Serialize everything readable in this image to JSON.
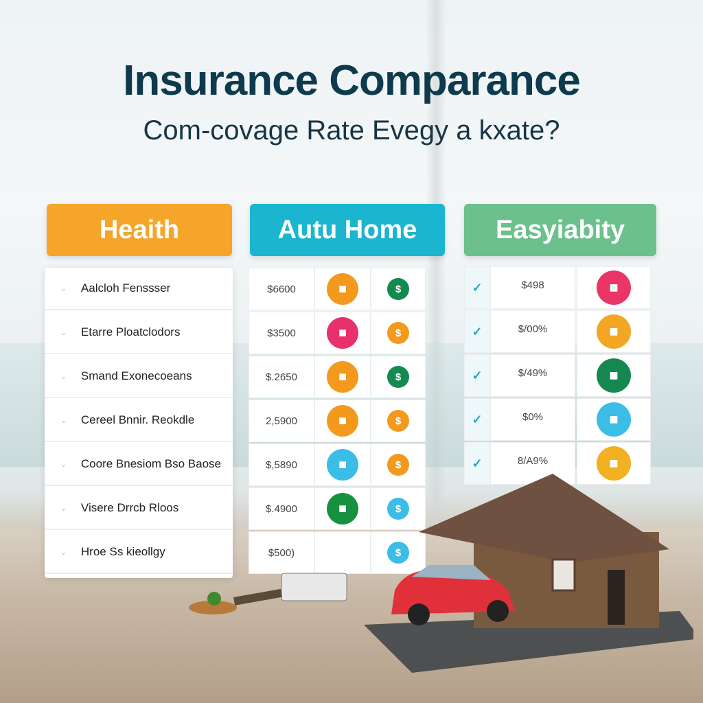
{
  "title": "Insurance Comparance",
  "subtitle": "Com-covage Rate Evegy a kxate?",
  "headers": [
    {
      "label": "Heaith",
      "color": "#f5a52a"
    },
    {
      "label": "Autu Home",
      "color": "#1bb5cf"
    },
    {
      "label": "Easyiabity",
      "color": "#6cc08c"
    }
  ],
  "health_rows": [
    "Aalcloh Fenssser",
    "Etarre Ploatclodors",
    "Smand Exonecoeans",
    "Cereel Bnnir. Reokdle",
    "Coore Bnesiom Bso Baose",
    "Visere Drrcb Rloos",
    "Hroe Ss kieollgy"
  ],
  "auto_rows": [
    {
      "price": "$6600",
      "icon1": {
        "name": "building-icon",
        "color": "#f39a1e"
      },
      "icon2": {
        "name": "dollar-icon",
        "color": "#138a4e"
      }
    },
    {
      "price": "$3500",
      "icon1": {
        "name": "car-icon",
        "color": "#e8306a"
      },
      "icon2": {
        "name": "dollar-icon",
        "color": "#f39a1e"
      }
    },
    {
      "price": "$.2650",
      "icon1": {
        "name": "home-icon",
        "color": "#f39a1e"
      },
      "icon2": {
        "name": "dollar-icon",
        "color": "#138a4e"
      }
    },
    {
      "price": "2,5900",
      "icon1": {
        "name": "document-icon",
        "color": "#f39a1e"
      },
      "icon2": {
        "name": "dollar-icon",
        "color": "#f39a1e"
      }
    },
    {
      "price": "$,5890",
      "icon1": {
        "name": "house-icon",
        "color": "#3bbde6"
      },
      "icon2": {
        "name": "dollar-icon",
        "color": "#f39a1e"
      }
    },
    {
      "price": "$.4900",
      "icon1": {
        "name": "wallet-icon",
        "color": "#17913f"
      },
      "icon2": {
        "name": "dollar-icon",
        "color": "#3bbde6"
      }
    },
    {
      "price": "$500)",
      "icon1": null,
      "icon2": {
        "name": "dollar-icon",
        "color": "#3bbde6"
      }
    }
  ],
  "liability_rows": [
    {
      "value": "$498",
      "icon": {
        "name": "hospital-icon",
        "color": "#ea3667"
      }
    },
    {
      "value": "$/00%",
      "icon": {
        "name": "document-icon",
        "color": "#f3a524"
      }
    },
    {
      "value": "$/49%",
      "icon": {
        "name": "signpost-icon",
        "color": "#15884f"
      }
    },
    {
      "value": "$0%",
      "icon": {
        "name": "umbrella-icon",
        "color": "#3bbde6"
      }
    },
    {
      "value": "8/A9%",
      "icon": {
        "name": "diamond-icon",
        "color": "#f3b021"
      }
    }
  ],
  "glyphs": {
    "chevron": "⌄",
    "check": "✓",
    "dollar": "$"
  }
}
